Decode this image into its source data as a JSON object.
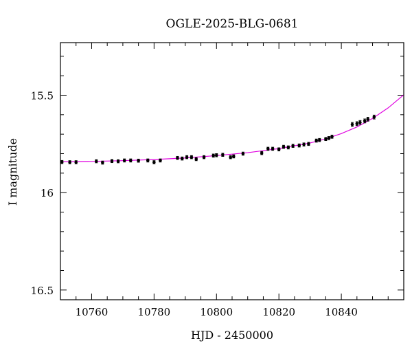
{
  "chart_data": {
    "type": "scatter",
    "title": "OGLE-2025-BLG-0681",
    "xlabel": "HJD - 2450000",
    "ylabel": "I magnitude",
    "xlim": [
      10750,
      10860
    ],
    "ylim": [
      16.55,
      15.23
    ],
    "y_inverted": true,
    "x_ticks": [
      10760,
      10780,
      10800,
      10820,
      10840
    ],
    "x_tick_labels": [
      "10760",
      "10780",
      "10800",
      "10820",
      "10840"
    ],
    "y_ticks": [
      15.5,
      16,
      16.5
    ],
    "y_tick_labels": [
      "15.5",
      "16",
      "16.5"
    ],
    "x_minor_step": 5,
    "y_minor_step": 0.1,
    "grid": false,
    "colors": {
      "points": "#000000",
      "model": "#e000e0",
      "frame": "#000000"
    },
    "series": [
      {
        "kind": "points",
        "x": [
          10750.5,
          10753.0,
          10755.0,
          10761.5,
          10763.5,
          10766.5,
          10768.5,
          10770.5,
          10772.5,
          10775.0,
          10778.0,
          10780.0,
          10782.0,
          10787.5,
          10789.0,
          10790.5,
          10792.0,
          10793.5,
          10796.0,
          10799.0,
          10800.0,
          10802.0,
          10804.5,
          10805.5,
          10808.5,
          10814.5,
          10816.5,
          10818.0,
          10820.0,
          10821.5,
          10823.0,
          10824.5,
          10826.5,
          10828.0,
          10829.5,
          10832.0,
          10833.0,
          10835.0,
          10836.0,
          10837.0,
          10843.5,
          10845.0,
          10846.0,
          10847.5,
          10848.5,
          10850.5
        ],
        "y": [
          15.843,
          15.844,
          15.844,
          15.839,
          15.846,
          15.838,
          15.839,
          15.835,
          15.835,
          15.836,
          15.835,
          15.844,
          15.835,
          15.822,
          15.825,
          15.818,
          15.818,
          15.828,
          15.818,
          15.81,
          15.808,
          15.806,
          15.818,
          15.814,
          15.8,
          15.797,
          15.775,
          15.775,
          15.778,
          15.765,
          15.768,
          15.76,
          15.758,
          15.753,
          15.75,
          15.733,
          15.73,
          15.725,
          15.72,
          15.713,
          15.65,
          15.646,
          15.64,
          15.632,
          15.623,
          15.612
        ],
        "yerr": [
          0.008,
          0.008,
          0.008,
          0.008,
          0.008,
          0.008,
          0.008,
          0.008,
          0.008,
          0.008,
          0.008,
          0.008,
          0.008,
          0.008,
          0.008,
          0.008,
          0.008,
          0.008,
          0.008,
          0.008,
          0.008,
          0.008,
          0.008,
          0.008,
          0.008,
          0.008,
          0.008,
          0.008,
          0.008,
          0.008,
          0.008,
          0.008,
          0.008,
          0.008,
          0.008,
          0.008,
          0.008,
          0.008,
          0.008,
          0.008,
          0.01,
          0.01,
          0.01,
          0.01,
          0.01,
          0.01
        ]
      },
      {
        "kind": "model",
        "x": [
          10750,
          10760,
          10770,
          10780,
          10790,
          10800,
          10810,
          10820,
          10830,
          10835,
          10840,
          10845,
          10850,
          10855,
          10860
        ],
        "y": [
          15.842,
          15.84,
          15.836,
          15.83,
          15.822,
          15.81,
          15.795,
          15.774,
          15.745,
          15.724,
          15.697,
          15.663,
          15.619,
          15.565,
          15.498
        ]
      }
    ]
  }
}
